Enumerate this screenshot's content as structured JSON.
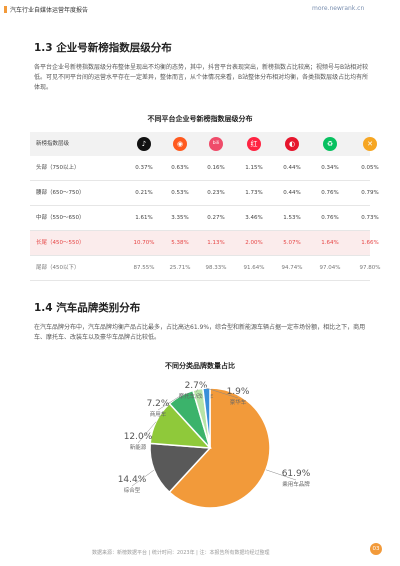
{
  "header": {
    "title": "汽车行业自媒体运营年度报告",
    "url": "more.newrank.cn"
  },
  "section_1_3": {
    "title": "1.3 企业号新榜指数层级分布",
    "paragraph": "各平台企业号新榜指数层级分布整体呈现出不均衡的态势，其中，抖音平台表现突出，新榜指数占比较高；视频号与B站相对较低。可见不同平台间的运营水平存在一定差异，整体而言，从个体情况来看，B站整体分布相对均衡，各类指数层级占比均有所体现。"
  },
  "table": {
    "title": "不同平台企业号新榜指数层级分布",
    "header_label": "新榜指数层级",
    "platforms": [
      {
        "icon": "douyin-icon",
        "glyph": "♪",
        "color": "#111111"
      },
      {
        "icon": "kuaishou-icon",
        "glyph": "◉",
        "color": "#ff5a1f"
      },
      {
        "icon": "bilibili-icon",
        "glyph": "bili",
        "color": "#ef4c6a"
      },
      {
        "icon": "xiaohongshu-icon",
        "glyph": "红",
        "color": "#ff2442"
      },
      {
        "icon": "weibo-icon",
        "glyph": "◐",
        "color": "#e6162d"
      },
      {
        "icon": "wechat-icon",
        "glyph": "♻",
        "color": "#07c160"
      },
      {
        "icon": "channels-icon",
        "glyph": "✕",
        "color": "#f6a623"
      }
    ],
    "rows": [
      {
        "label": "头部（750以上）",
        "values": [
          "0.37%",
          "0.63%",
          "0.16%",
          "1.15%",
          "0.44%",
          "0.34%",
          "0.05%"
        ]
      },
      {
        "label": "腰部（650～750）",
        "values": [
          "0.21%",
          "0.53%",
          "0.23%",
          "1.73%",
          "0.44%",
          "0.76%",
          "0.79%"
        ]
      },
      {
        "label": "中部（550～650）",
        "values": [
          "1.61%",
          "3.35%",
          "0.27%",
          "3.46%",
          "1.53%",
          "0.76%",
          "0.73%"
        ]
      },
      {
        "label": "长尾（450～550）",
        "values": [
          "10.70%",
          "5.38%",
          "1.13%",
          "2.00%",
          "5.07%",
          "1.64%",
          "1.66%"
        ]
      },
      {
        "label": "尾部（450以下）",
        "values": [
          "87.55%",
          "25.71%",
          "98.33%",
          "91.64%",
          "94.74%",
          "97.04%",
          "97.80%"
        ]
      }
    ]
  },
  "section_1_4": {
    "title": "1.4 汽车品牌类别分布",
    "paragraph": "在汽车品牌分布中，汽车品牌均衡产品占比最多，占比高达61.9%，综合型和新能源车辆占据一定市场份额，相比之下，商用车、摩托车、改装车以及豪华车品牌占比较低。"
  },
  "chart_data": {
    "type": "pie",
    "title": "不同分类品牌数量占比",
    "slices": [
      {
        "label": "乘用车品牌",
        "value": 61.9,
        "color": "#f29a3a"
      },
      {
        "label": "综合型",
        "value": 14.4,
        "color": "#595959"
      },
      {
        "label": "新能源",
        "value": 12.0,
        "color": "#8fc93a"
      },
      {
        "label": "商用车",
        "value": 7.2,
        "color": "#3bb36b"
      },
      {
        "label": "摩托车/改装车",
        "value": 2.7,
        "color": "#b7e4a8"
      },
      {
        "label": "豪华车",
        "value": 1.9,
        "color": "#3a8fd9"
      }
    ]
  },
  "footer": {
    "note": "数据来源：新榜数据平台 | 统计时间：2023年 | 注：本报告所有数据均经过整理",
    "page": "03"
  }
}
